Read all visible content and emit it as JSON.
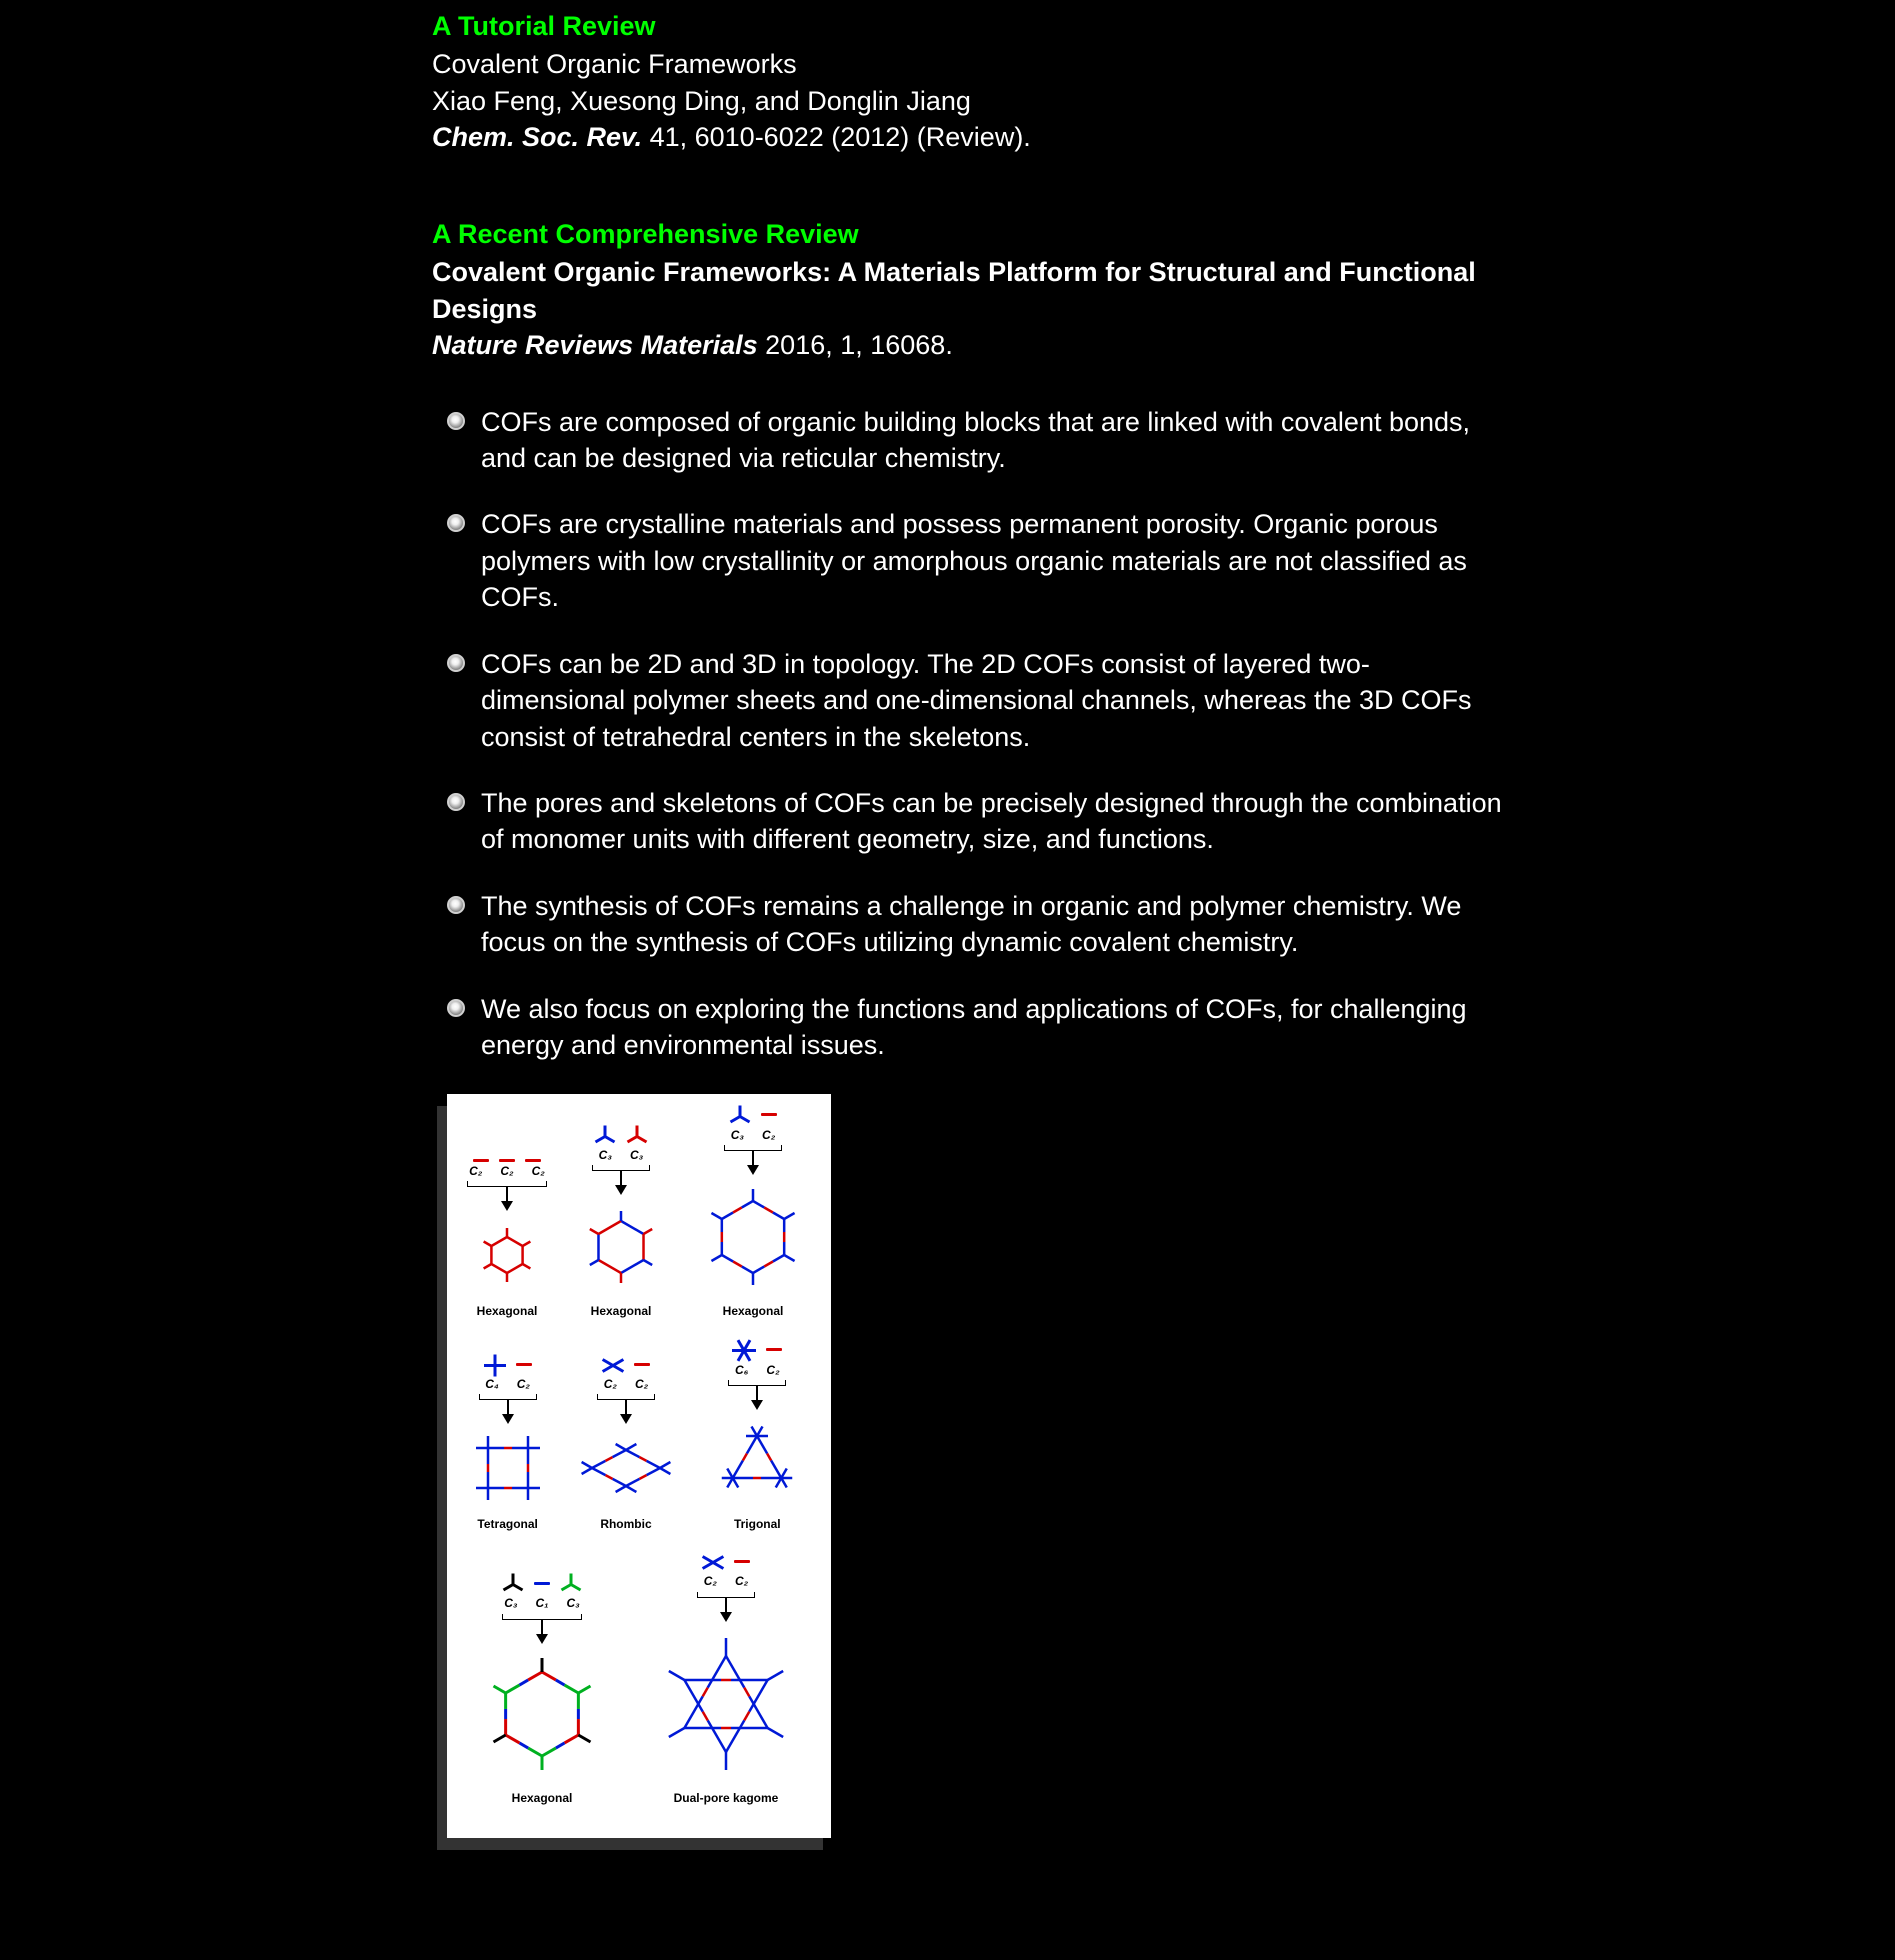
{
  "sections": {
    "tutorial": {
      "heading": "A Tutorial Review",
      "title": "Covalent Organic Frameworks",
      "authors": "Xiao Feng, Xuesong Ding, and Donglin Jiang",
      "journal": "Chem. Soc. Rev.",
      "citation_rest": " 41, 6010-6022 (2012) (Review)."
    },
    "comprehensive": {
      "heading": "A Recent Comprehensive Review",
      "title": "Covalent Organic Frameworks: A Materials Platform for Structural and Functional Designs",
      "journal": "Nature Reviews Materials",
      "citation_rest": " 2016, 1, 16068."
    }
  },
  "bullets": [
    "COFs are composed of organic building blocks that are linked with covalent bonds, and can be designed via reticular chemistry.",
    " COFs are crystalline materials and possess permanent porosity. Organic porous polymers with low crystallinity or amorphous organic materials are not classified as COFs.",
    " COFs can be 2D and 3D in topology. The 2D COFs consist of layered two-dimensional polymer sheets and one-dimensional channels, whereas the 3D COFs consist of tetrahedral centers in the skeletons.",
    " The pores and skeletons of COFs can be precisely designed through the combination of monomer units with different geometry, size, and functions.",
    " The synthesis of COFs remains a challenge in organic and polymer chemistry. We focus on the synthesis of COFs utilizing dynamic covalent chemistry.",
    "We also focus on exploring the functions and applications of COFs, for challenging energy and environmental issues."
  ],
  "figure": {
    "background": "#ffffff",
    "colors": {
      "red": "#d60000",
      "blue": "#0019d6",
      "green": "#00b020",
      "black": "#000000"
    },
    "label_font_size": 12,
    "rows": [
      {
        "cells": [
          {
            "linkers": [
              "dash_red",
              "dash_red",
              "dash_red"
            ],
            "cn": [
              "C₂",
              "C₂",
              "C₂"
            ],
            "label": "Hexagonal",
            "topo": "hex_small_red"
          },
          {
            "linkers": [
              "triY_blue",
              "triY_red"
            ],
            "cn": [
              "C₃",
              "C₃"
            ],
            "label": "Hexagonal",
            "topo": "hex_med_rb"
          },
          {
            "linkers": [
              "triY_blue",
              "dash_red"
            ],
            "cn": [
              "C₃",
              "C₂"
            ],
            "label": "Hexagonal",
            "topo": "hex_large_rb"
          }
        ]
      },
      {
        "cells": [
          {
            "linkers": [
              "cross_blue",
              "dash_red"
            ],
            "cn": [
              "C₄",
              "C₂"
            ],
            "label": "Tetragonal",
            "topo": "square_rb"
          },
          {
            "linkers": [
              "x_blue",
              "dash_red"
            ],
            "cn": [
              "C₂",
              "C₂"
            ],
            "label": "Rhombic",
            "topo": "rhombic_rb"
          },
          {
            "linkers": [
              "star6_blue",
              "dash_red"
            ],
            "cn": [
              "C₆",
              "C₂"
            ],
            "label": "Trigonal",
            "topo": "trigonal_rb"
          }
        ]
      },
      {
        "cells": [
          {
            "linkers": [
              "triY_black",
              "dash_blue",
              "triY_green"
            ],
            "cn": [
              "C₃",
              "C₁",
              "C₃"
            ],
            "label": "Hexagonal",
            "topo": "hex_multi"
          },
          {
            "linkers": [
              "x_blue",
              "dash_red"
            ],
            "cn": [
              "C₂",
              "C₂"
            ],
            "label": "Dual-pore kagome",
            "topo": "kagome_rb"
          }
        ]
      }
    ]
  }
}
